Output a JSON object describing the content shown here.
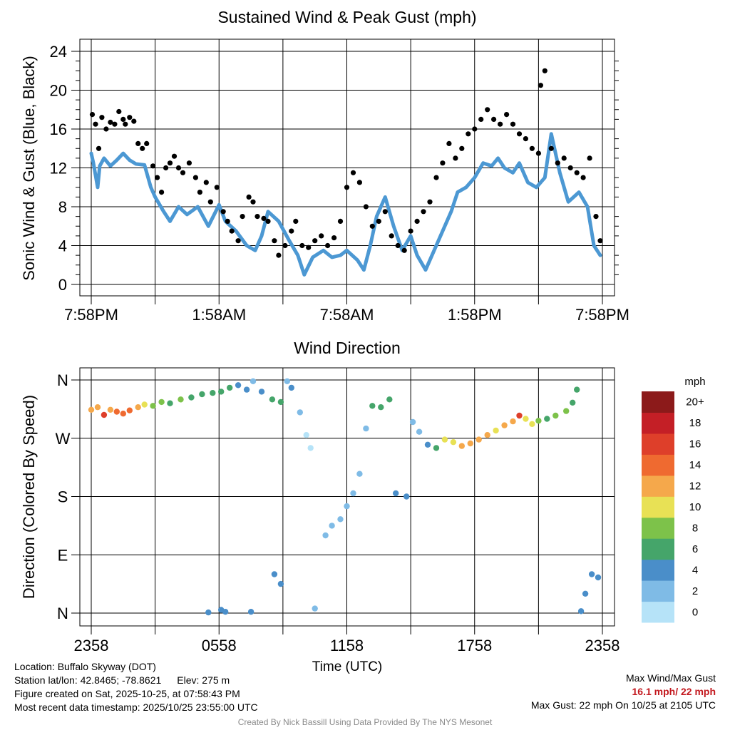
{
  "chart_data": [
    {
      "type": "line",
      "title": "Sustained Wind & Peak Gust (mph)",
      "ylabel": "Sonic Wind & Gust (Blue, Black)",
      "xlabel": "",
      "ylim": [
        0,
        24
      ],
      "y_ticks": [
        0,
        4,
        8,
        12,
        16,
        20,
        24
      ],
      "x_tick_labels": [
        "7:58PM",
        "1:58AM",
        "7:58AM",
        "1:58PM",
        "7:58PM"
      ],
      "grid": true,
      "x_unit": "hours since 7:58PM",
      "xlim": [
        0,
        24
      ],
      "series": [
        {
          "name": "Sustained Wind",
          "color": "#4c98d3",
          "style": "line",
          "x": [
            0,
            0.1,
            0.3,
            0.4,
            0.6,
            0.9,
            1.2,
            1.5,
            1.8,
            2.1,
            2.5,
            2.8,
            3.0,
            3.4,
            3.7,
            4.1,
            4.5,
            5.0,
            5.5,
            6.0,
            6.3,
            6.8,
            7.3,
            7.7,
            8.0,
            8.3,
            8.8,
            9.3,
            9.7,
            10.0,
            10.4,
            10.9,
            11.3,
            11.7,
            12.0,
            12.5,
            12.8,
            13.1,
            13.4,
            13.8,
            14.2,
            14.6,
            15.0,
            15.3,
            15.7,
            16.1,
            16.5,
            16.9,
            17.2,
            17.6,
            18.0,
            18.4,
            18.8,
            19.1,
            19.4,
            19.8,
            20.1,
            20.5,
            20.9,
            21.3,
            21.6,
            22.0,
            22.4,
            22.9,
            23.3,
            23.6,
            23.9
          ],
          "y": [
            13.5,
            12.5,
            10.0,
            12.2,
            13.0,
            12.2,
            12.8,
            13.5,
            12.8,
            12.4,
            12.3,
            10.0,
            9.0,
            7.5,
            6.5,
            8.0,
            7.2,
            8.0,
            6.0,
            8.2,
            6.5,
            5.5,
            4.0,
            3.5,
            5.0,
            7.5,
            6.5,
            4.5,
            3.0,
            1.0,
            2.8,
            3.5,
            2.8,
            3.0,
            3.5,
            2.5,
            1.5,
            4.0,
            7.0,
            9.0,
            6.0,
            3.5,
            5.0,
            3.0,
            1.5,
            3.5,
            5.5,
            7.5,
            9.5,
            10.0,
            11.0,
            12.5,
            12.2,
            13.0,
            12.0,
            11.5,
            12.5,
            10.5,
            10.0,
            11.0,
            15.5,
            11.5,
            8.5,
            9.5,
            8.0,
            4.0,
            3.0
          ]
        },
        {
          "name": "Peak Gust",
          "color": "#000000",
          "style": "points",
          "x": [
            0.05,
            0.2,
            0.35,
            0.5,
            0.7,
            0.9,
            1.1,
            1.3,
            1.5,
            1.6,
            1.8,
            2.0,
            2.2,
            2.4,
            2.6,
            2.9,
            3.1,
            3.3,
            3.5,
            3.7,
            3.9,
            4.1,
            4.3,
            4.6,
            4.9,
            5.1,
            5.4,
            5.6,
            5.9,
            6.2,
            6.4,
            6.6,
            6.9,
            7.1,
            7.4,
            7.6,
            7.8,
            8.1,
            8.3,
            8.6,
            8.8,
            9.1,
            9.4,
            9.6,
            9.9,
            10.2,
            10.5,
            10.8,
            11.1,
            11.4,
            11.7,
            12.0,
            12.3,
            12.6,
            12.9,
            13.2,
            13.5,
            13.8,
            14.1,
            14.4,
            14.7,
            15.0,
            15.3,
            15.6,
            15.9,
            16.2,
            16.5,
            16.8,
            17.1,
            17.4,
            17.7,
            18.0,
            18.3,
            18.6,
            18.9,
            19.2,
            19.5,
            19.8,
            20.1,
            20.4,
            20.7,
            21.0,
            21.1,
            21.3,
            21.6,
            21.9,
            22.2,
            22.5,
            22.8,
            23.1,
            23.4,
            23.7,
            23.9
          ],
          "y": [
            17.5,
            16.5,
            14.0,
            17.2,
            16.0,
            16.7,
            16.5,
            17.8,
            17.0,
            16.5,
            17.2,
            16.8,
            14.5,
            14.0,
            14.5,
            12.2,
            11.0,
            9.5,
            12.0,
            12.5,
            13.2,
            12.0,
            11.5,
            12.5,
            11.0,
            9.5,
            10.5,
            8.5,
            10.0,
            7.5,
            6.5,
            5.5,
            4.5,
            7.0,
            9.0,
            8.5,
            7.0,
            6.8,
            6.5,
            4.5,
            3.0,
            4.0,
            5.5,
            6.5,
            4.0,
            3.8,
            4.5,
            5.0,
            4.0,
            4.8,
            6.5,
            10.0,
            11.5,
            10.5,
            8.0,
            6.0,
            6.5,
            7.5,
            5.0,
            4.0,
            3.5,
            5.5,
            6.5,
            7.5,
            8.5,
            11.0,
            12.5,
            14.5,
            13.0,
            14.0,
            15.5,
            16.0,
            17.0,
            18.0,
            17.0,
            16.5,
            17.5,
            16.5,
            15.5,
            15.0,
            14.0,
            13.5,
            20.5,
            22.0,
            14.0,
            12.5,
            13.0,
            12.0,
            11.5,
            11.0,
            13.0,
            7.0,
            4.5
          ]
        }
      ]
    },
    {
      "type": "scatter",
      "title": "Wind Direction",
      "ylabel": "Direction (Colored By Speed)",
      "xlabel": "Time (UTC)",
      "y_tick_labels": [
        "N",
        "E",
        "S",
        "W",
        "N"
      ],
      "y_tick_values": [
        0,
        90,
        180,
        270,
        360
      ],
      "ylim": [
        0,
        360
      ],
      "x_tick_labels": [
        "2358",
        "0558",
        "1158",
        "1758",
        "2358"
      ],
      "xlim": [
        0,
        24
      ],
      "grid": true,
      "colorbar": {
        "label": "mph",
        "levels": [
          "0",
          "2",
          "4",
          "6",
          "8",
          "10",
          "12",
          "14",
          "16",
          "18",
          "20+"
        ],
        "colors": [
          "#b6e3f8",
          "#7fbbe6",
          "#4a8ec9",
          "#45a56a",
          "#7dc24a",
          "#e8e155",
          "#f5a84b",
          "#ef6a30",
          "#de3f2a",
          "#c41f26",
          "#8c1a1a"
        ]
      },
      "points": [
        {
          "x": 0.0,
          "y": 314,
          "s": 12
        },
        {
          "x": 0.3,
          "y": 318,
          "s": 13
        },
        {
          "x": 0.6,
          "y": 306,
          "s": 16
        },
        {
          "x": 0.9,
          "y": 314,
          "s": 13
        },
        {
          "x": 1.2,
          "y": 311,
          "s": 14
        },
        {
          "x": 1.5,
          "y": 308,
          "s": 15
        },
        {
          "x": 1.8,
          "y": 313,
          "s": 14
        },
        {
          "x": 2.2,
          "y": 318,
          "s": 12
        },
        {
          "x": 2.5,
          "y": 322,
          "s": 10
        },
        {
          "x": 2.9,
          "y": 320,
          "s": 9
        },
        {
          "x": 3.3,
          "y": 326,
          "s": 8
        },
        {
          "x": 3.7,
          "y": 324,
          "s": 7
        },
        {
          "x": 4.2,
          "y": 330,
          "s": 8
        },
        {
          "x": 4.7,
          "y": 333,
          "s": 7
        },
        {
          "x": 5.2,
          "y": 338,
          "s": 7
        },
        {
          "x": 5.7,
          "y": 340,
          "s": 6
        },
        {
          "x": 6.1,
          "y": 342,
          "s": 7
        },
        {
          "x": 6.5,
          "y": 348,
          "s": 6
        },
        {
          "x": 6.9,
          "y": 352,
          "s": 5
        },
        {
          "x": 7.3,
          "y": 345,
          "s": 5
        },
        {
          "x": 7.6,
          "y": 358,
          "s": 3
        },
        {
          "x": 8.0,
          "y": 342,
          "s": 4
        },
        {
          "x": 8.5,
          "y": 330,
          "s": 6
        },
        {
          "x": 8.9,
          "y": 326,
          "s": 7
        },
        {
          "x": 9.2,
          "y": 358,
          "s": 3
        },
        {
          "x": 9.4,
          "y": 348,
          "s": 4
        },
        {
          "x": 9.8,
          "y": 310,
          "s": 2
        },
        {
          "x": 10.1,
          "y": 275,
          "s": 1
        },
        {
          "x": 10.3,
          "y": 255,
          "s": 1
        },
        {
          "x": 11.0,
          "y": 120,
          "s": 3
        },
        {
          "x": 11.3,
          "y": 135,
          "s": 2
        },
        {
          "x": 11.7,
          "y": 145,
          "s": 2
        },
        {
          "x": 12.0,
          "y": 165,
          "s": 2
        },
        {
          "x": 12.3,
          "y": 185,
          "s": 2
        },
        {
          "x": 12.6,
          "y": 215,
          "s": 2
        },
        {
          "x": 12.9,
          "y": 285,
          "s": 3
        },
        {
          "x": 13.2,
          "y": 320,
          "s": 7
        },
        {
          "x": 13.6,
          "y": 318,
          "s": 6
        },
        {
          "x": 14.0,
          "y": 330,
          "s": 6
        },
        {
          "x": 14.3,
          "y": 185,
          "s": 4
        },
        {
          "x": 14.8,
          "y": 180,
          "s": 4
        },
        {
          "x": 15.1,
          "y": 295,
          "s": 2
        },
        {
          "x": 15.4,
          "y": 280,
          "s": 3
        },
        {
          "x": 15.8,
          "y": 260,
          "s": 5
        },
        {
          "x": 16.2,
          "y": 255,
          "s": 6
        },
        {
          "x": 16.6,
          "y": 268,
          "s": 10
        },
        {
          "x": 17.0,
          "y": 264,
          "s": 10
        },
        {
          "x": 17.4,
          "y": 258,
          "s": 12
        },
        {
          "x": 17.8,
          "y": 262,
          "s": 12
        },
        {
          "x": 18.2,
          "y": 268,
          "s": 12
        },
        {
          "x": 18.6,
          "y": 275,
          "s": 12
        },
        {
          "x": 19.0,
          "y": 282,
          "s": 11
        },
        {
          "x": 19.4,
          "y": 290,
          "s": 12
        },
        {
          "x": 19.8,
          "y": 296,
          "s": 12
        },
        {
          "x": 20.1,
          "y": 305,
          "s": 17
        },
        {
          "x": 20.4,
          "y": 300,
          "s": 10
        },
        {
          "x": 20.7,
          "y": 292,
          "s": 10
        },
        {
          "x": 21.0,
          "y": 297,
          "s": 9
        },
        {
          "x": 21.4,
          "y": 300,
          "s": 6
        },
        {
          "x": 21.8,
          "y": 305,
          "s": 8
        },
        {
          "x": 22.3,
          "y": 312,
          "s": 8
        },
        {
          "x": 22.6,
          "y": 325,
          "s": 7
        },
        {
          "x": 22.8,
          "y": 345,
          "s": 6
        },
        {
          "x": 5.5,
          "y": 1,
          "s": 4
        },
        {
          "x": 6.1,
          "y": 5,
          "s": 4
        },
        {
          "x": 6.3,
          "y": 2,
          "s": 4
        },
        {
          "x": 7.5,
          "y": 2,
          "s": 4
        },
        {
          "x": 8.6,
          "y": 60,
          "s": 4
        },
        {
          "x": 8.9,
          "y": 45,
          "s": 4
        },
        {
          "x": 10.5,
          "y": 7,
          "s": 2
        },
        {
          "x": 23.5,
          "y": 60,
          "s": 4
        },
        {
          "x": 23.8,
          "y": 55,
          "s": 4
        },
        {
          "x": 23.2,
          "y": 30,
          "s": 4
        },
        {
          "x": 23.0,
          "y": 3,
          "s": 4
        }
      ]
    }
  ],
  "footer": {
    "location": "Location: Buffalo Skyway (DOT)",
    "station": "Station lat/lon: 42.8465; -78.8621",
    "elevation": "Elev: 275 m",
    "created": "Figure created on Sat, 2025-10-25, at 07:58:43 PM",
    "recent": "Most recent data timestamp: 2025/10/25 23:55:00 UTC",
    "max_title": "Max Wind/Max Gust",
    "max_values": "16.1 mph/ 22 mph",
    "max_gust": "Max Gust: 22 mph On 10/25 at 2105 UTC",
    "credit": "Created By Nick Bassill Using Data Provided By The NYS Mesonet"
  }
}
